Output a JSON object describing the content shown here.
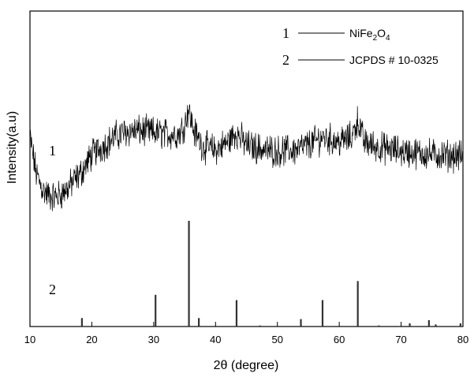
{
  "chart_data": {
    "type": "line",
    "xlabel": "2θ (degree)",
    "ylabel": "Intensity(a.u)",
    "xlim": [
      10,
      80
    ],
    "xticks": [
      10,
      20,
      30,
      40,
      50,
      60,
      70,
      80
    ],
    "y_tick_labels": false,
    "grid": false,
    "legend_position": "top-right",
    "legend": [
      {
        "number": "1",
        "label_main": "NiFe",
        "sub1": "2",
        "label_mid": "O",
        "sub2": "4"
      },
      {
        "number": "2",
        "label": "JCPDS # 10-0325"
      }
    ],
    "curve_labels": [
      "1",
      "2"
    ],
    "series": [
      {
        "name": "NiFe2O4",
        "style": "noisy-line",
        "color": "#000000",
        "x": [
          10,
          11,
          12,
          13,
          14,
          15,
          16,
          17,
          18,
          19,
          20,
          22,
          24,
          26,
          28,
          30,
          32,
          34,
          35,
          35.6,
          36.5,
          38,
          40,
          42,
          43.3,
          45,
          48,
          50,
          53,
          55,
          57.3,
          60,
          62,
          63,
          64,
          66,
          70,
          75,
          80
        ],
        "y": [
          0.58,
          0.35,
          0.25,
          0.21,
          0.2,
          0.22,
          0.25,
          0.3,
          0.34,
          0.4,
          0.47,
          0.53,
          0.59,
          0.62,
          0.62,
          0.61,
          0.6,
          0.6,
          0.66,
          0.76,
          0.62,
          0.52,
          0.5,
          0.55,
          0.61,
          0.53,
          0.5,
          0.49,
          0.5,
          0.53,
          0.58,
          0.55,
          0.58,
          0.69,
          0.55,
          0.52,
          0.49,
          0.47,
          0.46
        ]
      },
      {
        "name": "JCPDS # 10-0325",
        "style": "stick",
        "color": "#333333",
        "x": [
          18.4,
          30.3,
          35.7,
          37.3,
          43.4,
          47.2,
          53.8,
          57.3,
          63.0,
          66.4,
          71.4,
          74.5,
          75.6,
          79.6
        ],
        "y": [
          8,
          30,
          100,
          8,
          25,
          1,
          7,
          25,
          43,
          1,
          3,
          6,
          2,
          3
        ]
      }
    ]
  }
}
